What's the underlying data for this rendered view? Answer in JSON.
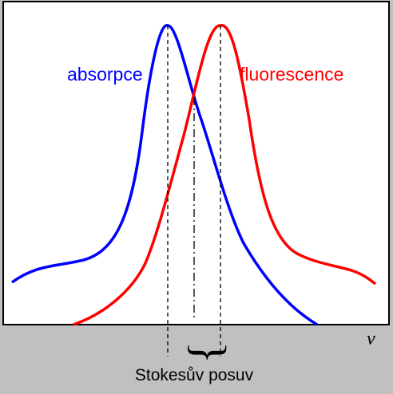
{
  "figure": {
    "absorption_label": "absorpce",
    "fluorescence_label": "fluorescence",
    "x_axis_symbol": "ν",
    "shift_label": "Stokesův posuv",
    "bracket_glyph": "}"
  },
  "colors": {
    "background": "#c0c0c0",
    "plot_area": "#ffffff",
    "absorption": "#0000ff",
    "fluorescence": "#ff0000",
    "guides": "#000000"
  }
}
